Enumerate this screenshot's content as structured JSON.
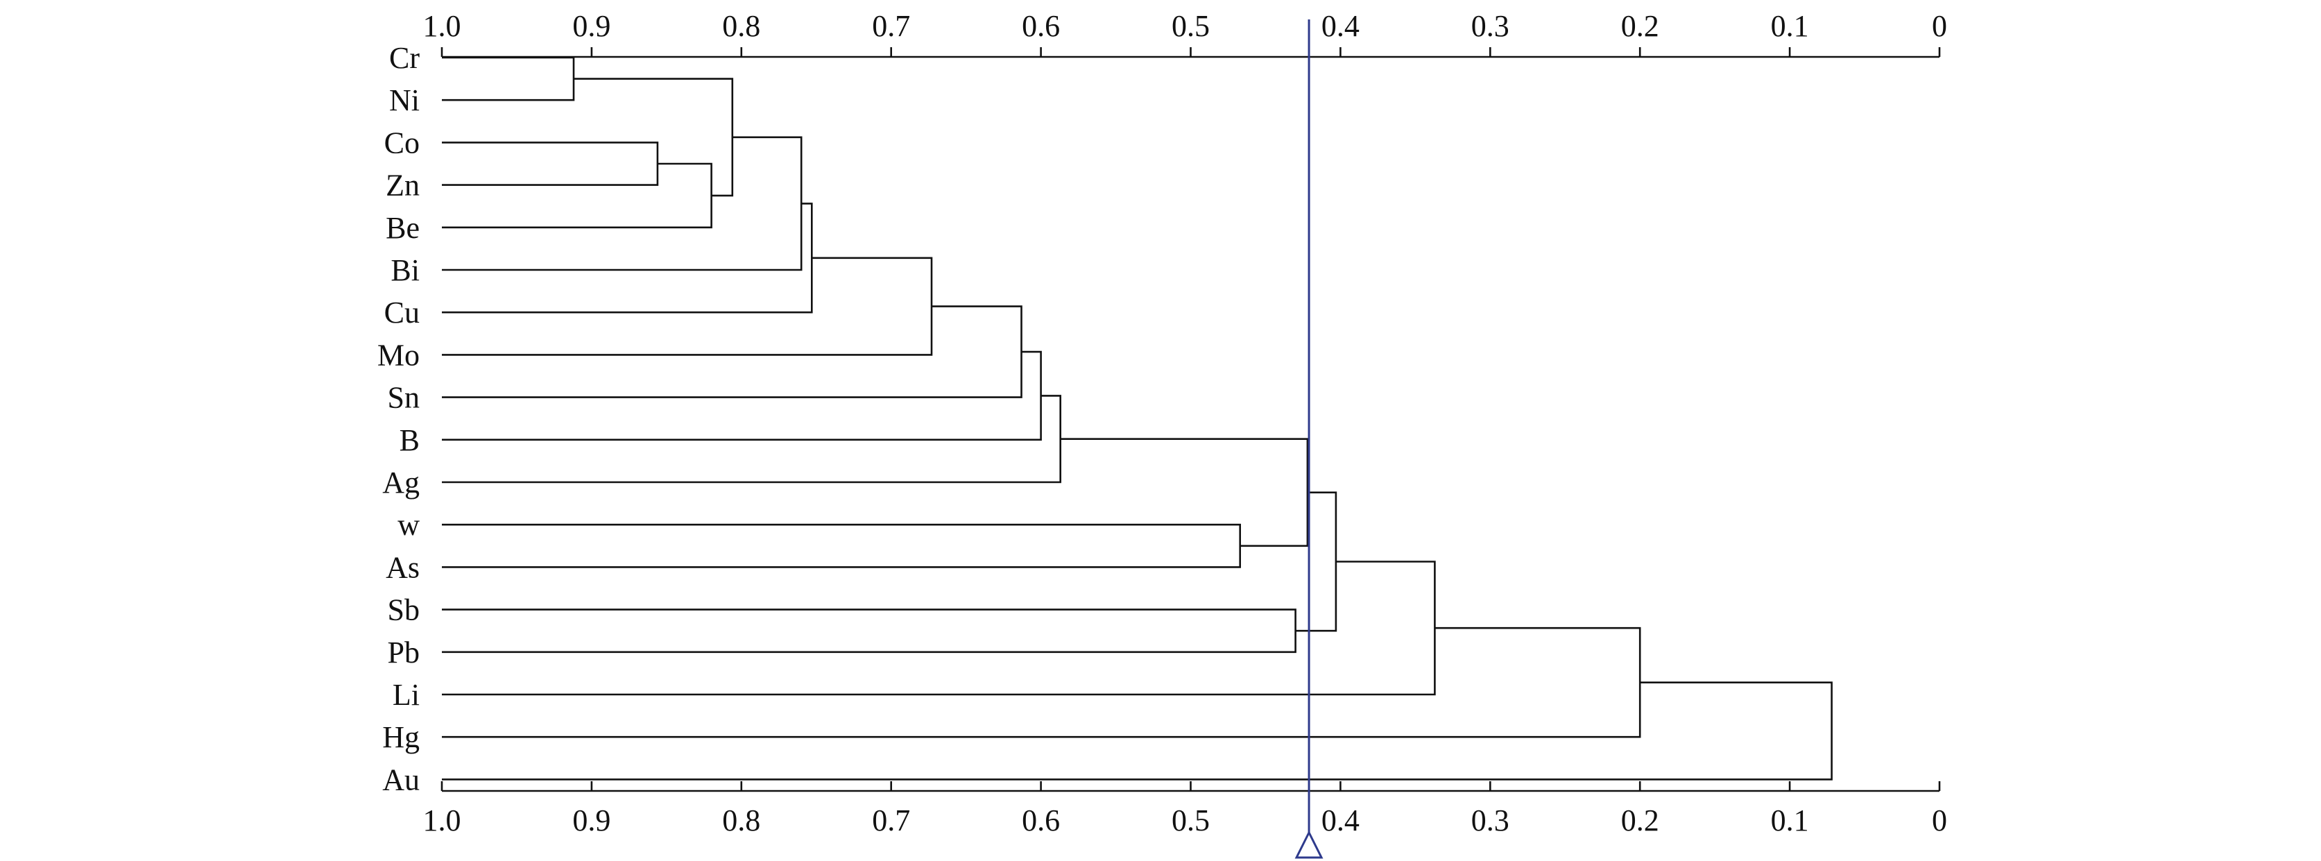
{
  "chart_data": {
    "type": "dendrogram",
    "axis": {
      "direction": "reversed",
      "min": 0,
      "max": 1.0,
      "ticks": [
        1.0,
        0.9,
        0.8,
        0.7,
        0.6,
        0.5,
        0.4,
        0.3,
        0.2,
        0.1,
        0
      ],
      "tick_labels": [
        "1.0",
        "0.9",
        "0.8",
        "0.7",
        "0.6",
        "0.5",
        "0.4",
        "0.3",
        "0.2",
        "0.1",
        "0"
      ],
      "positions": [
        "top",
        "bottom"
      ]
    },
    "leaves": [
      "Cr",
      "Ni",
      "Co",
      "Zn",
      "Be",
      "Bi",
      "Cu",
      "Mo",
      "Sn",
      "B",
      "Ag",
      "w",
      "As",
      "Sb",
      "Pb",
      "Li",
      "Hg",
      "Au"
    ],
    "merges": [
      {
        "id": "n1",
        "children": [
          "Cr",
          "Ni"
        ],
        "height": 0.912
      },
      {
        "id": "n2",
        "children": [
          "Co",
          "Zn"
        ],
        "height": 0.856
      },
      {
        "id": "n3",
        "children": [
          "n2",
          "Be"
        ],
        "height": 0.82
      },
      {
        "id": "n4",
        "children": [
          "n1",
          "n3"
        ],
        "height": 0.806
      },
      {
        "id": "n5",
        "children": [
          "n4",
          "Bi"
        ],
        "height": 0.76
      },
      {
        "id": "n6",
        "children": [
          "n5",
          "Cu"
        ],
        "height": 0.753
      },
      {
        "id": "n7",
        "children": [
          "n6",
          "Mo"
        ],
        "height": 0.673
      },
      {
        "id": "n8",
        "children": [
          "n7",
          "Sn"
        ],
        "height": 0.613
      },
      {
        "id": "n9",
        "children": [
          "n8",
          "B"
        ],
        "height": 0.6
      },
      {
        "id": "n10",
        "children": [
          "n9",
          "Ag"
        ],
        "height": 0.587
      },
      {
        "id": "n11",
        "children": [
          "w",
          "As"
        ],
        "height": 0.467
      },
      {
        "id": "n12",
        "children": [
          "n10",
          "n11"
        ],
        "height": 0.422
      },
      {
        "id": "n13",
        "children": [
          "Sb",
          "Pb"
        ],
        "height": 0.43
      },
      {
        "id": "n14",
        "children": [
          "n12",
          "n13"
        ],
        "height": 0.403
      },
      {
        "id": "n15",
        "children": [
          "n14",
          "Li"
        ],
        "height": 0.337
      },
      {
        "id": "n16",
        "children": [
          "n15",
          "Hg"
        ],
        "height": 0.2
      },
      {
        "id": "n17",
        "children": [
          "n16",
          "Au"
        ],
        "height": 0.072
      }
    ],
    "cut_threshold": 0.421,
    "colors": {
      "tree": "#111111",
      "cut_line": "#2e3a8c"
    }
  }
}
